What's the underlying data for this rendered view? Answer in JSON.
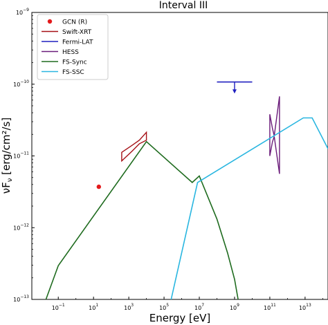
{
  "chart_data": {
    "type": "line",
    "title": "Interval III",
    "xlabel": "Energy [eV]",
    "ylabel": "νF",
    "ylabel_sub": "ν",
    "ylabel_unit": " [erg/cm²/s]",
    "xscale": "log",
    "yscale": "log",
    "xlim_exp": [
      -2.5,
      14.3
    ],
    "ylim_exp": [
      -13,
      -9
    ],
    "x_ticks": [
      {
        "exp": -1,
        "label": "10",
        "sup": "−1"
      },
      {
        "exp": 1,
        "label": "10",
        "sup": "1"
      },
      {
        "exp": 3,
        "label": "10",
        "sup": "3"
      },
      {
        "exp": 5,
        "label": "10",
        "sup": "5"
      },
      {
        "exp": 7,
        "label": "10",
        "sup": "7"
      },
      {
        "exp": 9,
        "label": "10",
        "sup": "9"
      },
      {
        "exp": 11,
        "label": "10",
        "sup": "11"
      },
      {
        "exp": 13,
        "label": "10",
        "sup": "13"
      }
    ],
    "y_ticks": [
      {
        "exp": -13,
        "label": "10",
        "sup": "−13"
      },
      {
        "exp": -12,
        "label": "10",
        "sup": "−12"
      },
      {
        "exp": -11,
        "label": "10",
        "sup": "−11"
      },
      {
        "exp": -10,
        "label": "10",
        "sup": "−10"
      },
      {
        "exp": -9,
        "label": "10",
        "sup": "−9"
      }
    ],
    "legend_position": "top-left",
    "series": [
      {
        "name": "GCN (R)",
        "kind": "scatter",
        "color": "#e31a1c",
        "points": [
          [
            1.3,
            -11.43
          ]
        ]
      },
      {
        "name": "Swift-XRT",
        "kind": "band",
        "color": "#a50f15",
        "lower": [
          [
            2.6,
            -11.07
          ],
          [
            3.2,
            -10.93
          ],
          [
            3.6,
            -10.83
          ],
          [
            4.0,
            -10.78
          ]
        ],
        "upper": [
          [
            2.6,
            -10.95
          ],
          [
            3.2,
            -10.85
          ],
          [
            3.6,
            -10.78
          ],
          [
            4.0,
            -10.67
          ]
        ]
      },
      {
        "name": "Fermi-LAT",
        "kind": "upper_limit",
        "color": "#1f1fbf",
        "points": [
          [
            8.0,
            -9.97
          ],
          [
            10.0,
            -9.97
          ]
        ],
        "arrow_x": 9.0,
        "arrow_to": -10.12
      },
      {
        "name": "HESS",
        "kind": "band",
        "color": "#6a1b7a",
        "lower": [
          [
            11.0,
            -11.0
          ],
          [
            11.15,
            -10.8
          ],
          [
            11.25,
            -10.73
          ],
          [
            11.55,
            -11.25
          ]
        ],
        "upper": [
          [
            11.0,
            -10.42
          ],
          [
            11.15,
            -10.62
          ],
          [
            11.25,
            -10.72
          ],
          [
            11.55,
            -10.17
          ]
        ]
      },
      {
        "name": "FS-Sync",
        "kind": "line",
        "color": "#1e6b1e",
        "points": [
          [
            -1.7,
            -13.0
          ],
          [
            -1.0,
            -12.53
          ],
          [
            4.0,
            -10.8
          ],
          [
            6.6,
            -11.37
          ],
          [
            7.0,
            -11.28
          ],
          [
            8.0,
            -11.88
          ],
          [
            8.6,
            -12.35
          ],
          [
            9.0,
            -12.72
          ],
          [
            9.2,
            -13.0
          ]
        ]
      },
      {
        "name": "FS-SSC",
        "kind": "line",
        "color": "#29b6e0",
        "points": [
          [
            5.4,
            -13.0
          ],
          [
            6.9,
            -11.37
          ],
          [
            12.9,
            -10.47
          ],
          [
            13.4,
            -10.47
          ],
          [
            14.3,
            -10.9
          ]
        ]
      }
    ]
  }
}
